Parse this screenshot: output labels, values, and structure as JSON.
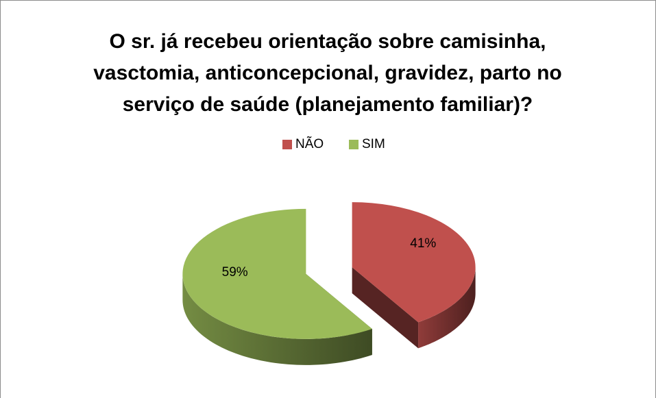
{
  "chart_data": {
    "type": "pie",
    "title": [
      "O sr. já recebeu orientação sobre camisinha,",
      "vasctomia, anticoncepcional, gravidez, parto no",
      "serviço de saúde (planejamento familiar)?"
    ],
    "categories": [
      "NÃO",
      "SIM"
    ],
    "values": [
      41,
      59
    ],
    "value_labels": [
      "41%",
      "59%"
    ],
    "colors": [
      "#c0504d",
      "#9bbb59"
    ],
    "legend": "top"
  }
}
